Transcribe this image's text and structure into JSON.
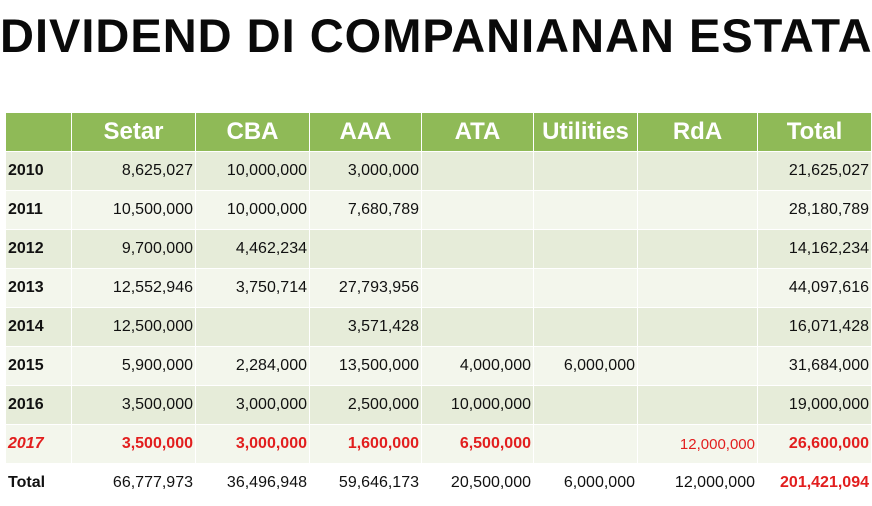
{
  "title": "DIVIDEND DI COMPANIANAN ESTATAL",
  "table": {
    "columns": [
      "Setar",
      "CBA",
      "AAA",
      "ATA",
      "Utilities",
      "RdA",
      "Total"
    ],
    "rows": [
      {
        "year": "2010",
        "values": [
          "8,625,027",
          "10,000,000",
          "3,000,000",
          "",
          "",
          "",
          "21,625,027"
        ]
      },
      {
        "year": "2011",
        "values": [
          "10,500,000",
          "10,000,000",
          "7,680,789",
          "",
          "",
          "",
          "28,180,789"
        ]
      },
      {
        "year": "2012",
        "values": [
          "9,700,000",
          "4,462,234",
          "",
          "",
          "",
          "",
          "14,162,234"
        ]
      },
      {
        "year": "2013",
        "values": [
          "12,552,946",
          "3,750,714",
          "27,793,956",
          "",
          "",
          "",
          "44,097,616"
        ]
      },
      {
        "year": "2014",
        "values": [
          "12,500,000",
          "",
          "3,571,428",
          "",
          "",
          "",
          "16,071,428"
        ]
      },
      {
        "year": "2015",
        "values": [
          "5,900,000",
          "2,284,000",
          "13,500,000",
          "4,000,000",
          "6,000,000",
          "",
          "31,684,000"
        ]
      },
      {
        "year": "2016",
        "values": [
          "3,500,000",
          "3,000,000",
          "2,500,000",
          "10,000,000",
          "",
          "",
          "19,000,000"
        ]
      },
      {
        "year": "2017",
        "values": [
          "3,500,000",
          "3,000,000",
          "1,600,000",
          "6,500,000",
          "",
          "12,000,000",
          "26,600,000"
        ]
      }
    ],
    "total": {
      "label": "Total",
      "values": [
        "66,777,973",
        "36,496,948",
        "59,646,173",
        "20,500,000",
        "6,000,000",
        "12,000,000",
        "201,421,094"
      ]
    }
  },
  "colors": {
    "header_bg": "#8fba57",
    "highlight_text": "#e21e1e",
    "row_band_a": "#e6ecd9",
    "row_band_b": "#f3f6ec"
  }
}
